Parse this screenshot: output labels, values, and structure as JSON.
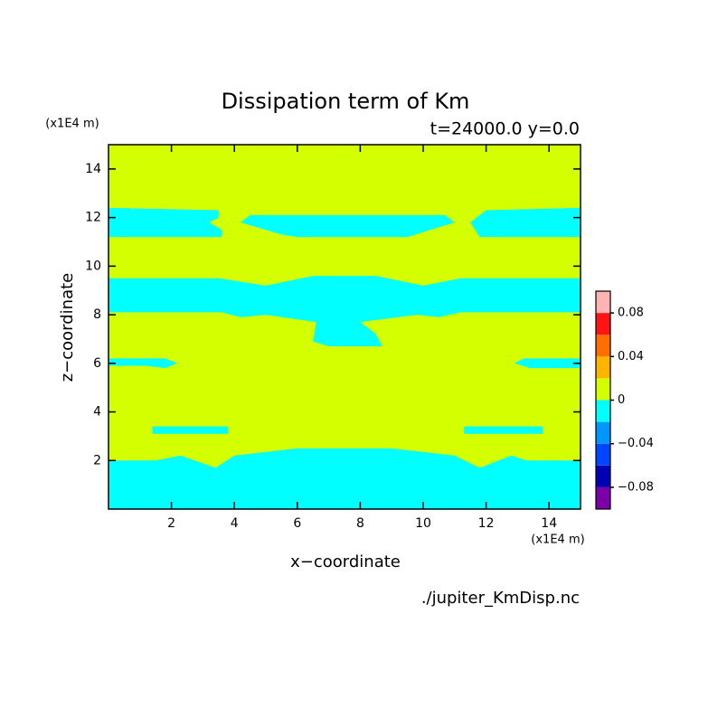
{
  "chart_data": {
    "type": "contour",
    "title": "Dissipation term of Km",
    "subtitle": "t=24000.0 y=0.0",
    "x_label": "x−coordinate",
    "y_label": "z−coordinate",
    "x_unit": "(x1E4 m)",
    "y_unit": "(x1E4 m)",
    "source": "./jupiter_KmDisp.nc",
    "xlim": [
      0,
      15
    ],
    "ylim": [
      0,
      15
    ],
    "xticks": [
      2,
      4,
      6,
      8,
      10,
      12,
      14
    ],
    "yticks": [
      2,
      4,
      6,
      8,
      10,
      12,
      14
    ],
    "levels": [
      -0.1,
      -0.08,
      -0.06,
      -0.04,
      -0.02,
      0,
      0.02,
      0.04,
      0.06,
      0.08,
      0.1
    ],
    "colors": [
      "#7a00a8",
      "#0000b4",
      "#0046ff",
      "#0096ff",
      "#00ffff",
      "#d4ff00",
      "#ffb400",
      "#ff6e00",
      "#ff1414",
      "#ffb4b4"
    ],
    "cticks": [
      {
        "value": -0.08,
        "label": "−0.08"
      },
      {
        "value": -0.04,
        "label": "−0.04"
      },
      0,
      0.04,
      0.08
    ],
    "background_level": 5,
    "regions": [
      {
        "level": 4,
        "x": [
          0,
          15,
          15,
          13.3,
          12.8,
          11.8,
          11,
          9,
          6,
          4,
          3.4,
          2.3,
          1.5,
          0
        ],
        "z": [
          0,
          0,
          2,
          2,
          2.2,
          1.7,
          2.2,
          2.5,
          2.5,
          2.2,
          1.7,
          2.2,
          2,
          2
        ]
      },
      {
        "level": 4,
        "x": [
          1.4,
          3.8,
          3.8,
          1.4
        ],
        "z": [
          3.1,
          3.1,
          3.4,
          3.4
        ]
      },
      {
        "level": 4,
        "x": [
          11.3,
          13.8,
          13.8,
          11.3
        ],
        "z": [
          3.1,
          3.1,
          3.4,
          3.4
        ]
      },
      {
        "level": 4,
        "x": [
          0,
          1.2,
          1.8,
          2.2,
          1.8,
          0
        ],
        "z": [
          5.9,
          5.9,
          5.8,
          6,
          6.2,
          6.2
        ]
      },
      {
        "level": 4,
        "x": [
          15,
          13.4,
          12.9,
          13.2,
          15
        ],
        "z": [
          5.8,
          5.8,
          6,
          6.2,
          6.2
        ]
      },
      {
        "level": 4,
        "x": [
          0,
          3.6,
          4.2,
          5,
          6.6,
          6.5,
          7,
          8.7,
          8.5,
          8,
          9.8,
          10.5,
          11.2,
          15,
          15,
          11.2,
          10,
          8.5,
          6.5,
          5,
          3.5,
          0
        ],
        "z": [
          8.1,
          8.1,
          7.9,
          8,
          7.7,
          6.9,
          6.7,
          6.7,
          7.2,
          7.7,
          8,
          7.9,
          8.1,
          8.1,
          9.5,
          9.5,
          9.2,
          9.6,
          9.6,
          9.2,
          9.5,
          9.5
        ]
      },
      {
        "level": 4,
        "x": [
          0,
          3.6,
          3.6,
          3.2,
          3.5,
          3.5,
          0
        ],
        "z": [
          11.2,
          11.2,
          11.5,
          11.8,
          12,
          12.3,
          12.4
        ]
      },
      {
        "level": 4,
        "x": [
          4.2,
          5.5,
          6,
          9.5,
          10.5,
          11,
          10.7,
          4.5
        ],
        "z": [
          11.8,
          11.3,
          11.2,
          11.2,
          11.6,
          11.8,
          12.1,
          12.1
        ]
      },
      {
        "level": 4,
        "x": [
          11.8,
          15,
          15,
          12,
          11.5
        ],
        "z": [
          11.2,
          11.2,
          12.4,
          12.3,
          11.8
        ]
      }
    ]
  }
}
